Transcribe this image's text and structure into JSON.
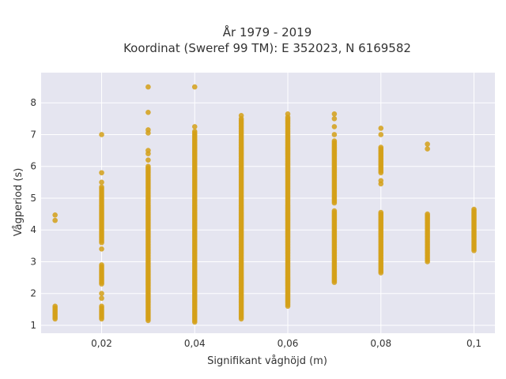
{
  "chart_data": {
    "type": "scatter",
    "title_line1": "År 1979 - 2019",
    "title_line2": "Koordinat (Sweref 99 TM): E 352023, N 6169582",
    "xlabel": "Signifikant våghöjd (m)",
    "ylabel": "Vågperiod (s)",
    "xlim": [
      0.007,
      0.1045
    ],
    "ylim": [
      0.75,
      8.95
    ],
    "x_ticks": [
      0.02,
      0.04,
      0.06,
      0.08,
      0.1
    ],
    "x_tick_labels": [
      "0,02",
      "0,04",
      "0,06",
      "0,08",
      "0,1"
    ],
    "y_ticks": [
      1,
      2,
      3,
      4,
      5,
      6,
      7,
      8
    ],
    "y_tick_labels": [
      "1",
      "2",
      "3",
      "4",
      "5",
      "6",
      "7",
      "8"
    ],
    "grid": true,
    "marker_color": "#D4A017",
    "plot_background": "#E5E5F0",
    "columns": [
      {
        "x": 0.01,
        "ranges": [
          [
            1.2,
            1.6
          ]
        ],
        "points": [
          4.3,
          4.47
        ]
      },
      {
        "x": 0.02,
        "ranges": [
          [
            1.2,
            1.6
          ],
          [
            2.3,
            2.9
          ],
          [
            3.6,
            5.35
          ]
        ],
        "points": [
          1.85,
          2.0,
          3.4,
          5.5,
          5.8,
          7.0
        ]
      },
      {
        "x": 0.03,
        "ranges": [
          [
            1.15,
            6.0
          ]
        ],
        "points": [
          6.2,
          6.4,
          6.5,
          7.05,
          7.15,
          7.7,
          8.5
        ]
      },
      {
        "x": 0.04,
        "ranges": [
          [
            1.1,
            7.1
          ]
        ],
        "points": [
          7.25,
          8.5
        ]
      },
      {
        "x": 0.05,
        "ranges": [
          [
            1.2,
            7.5
          ]
        ],
        "points": [
          7.6
        ]
      },
      {
        "x": 0.06,
        "ranges": [
          [
            1.6,
            7.55
          ]
        ],
        "points": [
          7.65
        ]
      },
      {
        "x": 0.07,
        "ranges": [
          [
            2.35,
            4.6
          ],
          [
            4.85,
            6.8
          ]
        ],
        "points": [
          7.0,
          7.25,
          7.5,
          7.65
        ]
      },
      {
        "x": 0.08,
        "ranges": [
          [
            2.65,
            4.55
          ],
          [
            5.8,
            6.6
          ]
        ],
        "points": [
          5.45,
          5.55,
          7.0,
          7.2
        ]
      },
      {
        "x": 0.09,
        "ranges": [
          [
            3.0,
            4.5
          ]
        ],
        "points": [
          6.55,
          6.7
        ]
      },
      {
        "x": 0.1,
        "ranges": [
          [
            3.35,
            3.95
          ],
          [
            4.0,
            4.65
          ]
        ],
        "points": []
      }
    ]
  }
}
